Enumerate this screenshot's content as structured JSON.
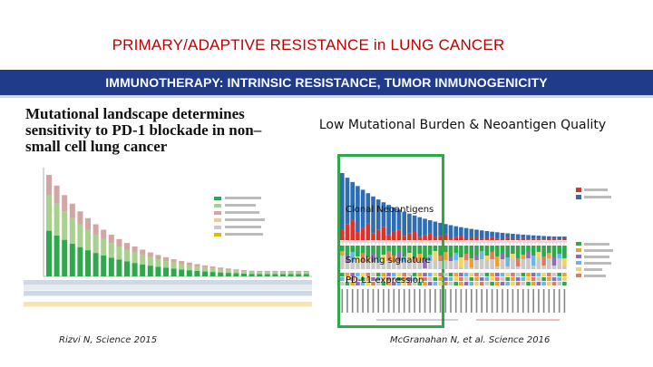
{
  "slide": {
    "title_highlight": "PRIMARY/ADAPTIVE",
    "title_rest": " RESISTANCE in LUNG CANCER",
    "banner": "IMMUNOTHERAPY: INTRINSIC RESISTANCE, TUMOR INMUNOGENICITY",
    "paper_title": "Mutational landscape determines sensitivity to PD-1 blockade in non–small cell lung cancer",
    "right_heading": "Low Mutational Burden & Neoantigen Quality",
    "labels": {
      "clonal": "Clonal Neoantigens",
      "smoking": "Smoking signature",
      "pdl1": "PD-L1 expression"
    },
    "cite_left": "Rizvi N, Science 2015",
    "cite_right": "McGranahan N, et al. Science 2016"
  },
  "colors": {
    "title": "#c00000",
    "banner_bg": "#1f3b8a",
    "box": "#2ea84a"
  }
}
